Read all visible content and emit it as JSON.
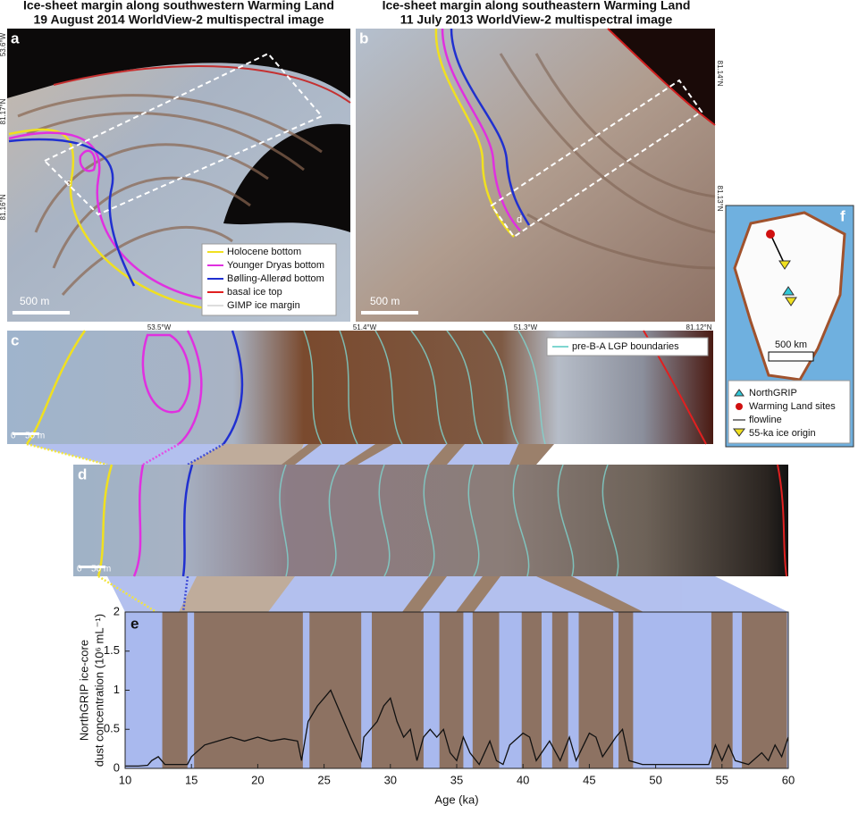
{
  "panels": {
    "a": {
      "label": "a",
      "title": [
        "Ice-sheet margin along southwestern Warming Land",
        "19 August 2014 WorldView-2 multispectral image"
      ],
      "lat_labels": [
        "81.17°N",
        "81.16°N"
      ],
      "lon_labels": [
        "53.6°W",
        "53.5°W"
      ],
      "scale_bar": "500 m",
      "inset": "c",
      "legend": [
        "Holocene bottom",
        "Younger Dryas bottom",
        "Bølling-Allerød bottom",
        "basal ice top",
        "GIMP ice margin"
      ]
    },
    "b": {
      "label": "b",
      "title": [
        "Ice-sheet margin along southeastern Warming Land",
        "11 July 2013 WorldView-2 multispectral image"
      ],
      "lat_labels": [
        "81.14°N",
        "81.13°N",
        "81.12°N"
      ],
      "lon_labels": [
        "51.4°W",
        "51.3°W"
      ],
      "scale_bar": "500 m",
      "inset": "d"
    },
    "c": {
      "label": "c",
      "legend": "pre-B-A LGP boundaries",
      "scale_bar": [
        "0",
        "50 m"
      ]
    },
    "d": {
      "label": "d",
      "scale_bar": [
        "0",
        "50 m"
      ]
    },
    "f": {
      "label": "f",
      "scale_bar": "500 km",
      "legend": [
        "NorthGRIP",
        "Warming Land sites",
        "flowline",
        "55-ka ice origin"
      ]
    }
  },
  "chart_data": {
    "type": "line",
    "panel_label": "e",
    "xlabel": "Age (ka)",
    "ylabel": [
      "NorthGRIP ice-core",
      "dust concentration (10⁶ mL⁻¹)"
    ],
    "x": [
      10,
      11,
      11.7,
      12,
      12.5,
      13,
      14,
      14.7,
      15,
      16,
      17,
      18,
      19,
      20,
      21,
      22,
      23,
      23.3,
      23.8,
      24.5,
      25,
      25.5,
      26,
      27,
      27.8,
      28,
      29,
      29.5,
      30,
      30.5,
      31,
      31.5,
      32,
      32.5,
      33,
      33.5,
      34,
      34.5,
      35,
      35.5,
      36,
      36.7,
      37.5,
      38,
      38.5,
      39,
      40,
      40.5,
      41,
      42,
      42.8,
      43.5,
      44,
      45,
      45.5,
      46,
      47,
      47.5,
      48,
      49,
      50,
      51,
      52,
      53,
      54,
      54.5,
      55,
      55.5,
      56,
      57,
      58,
      58.5,
      59,
      59.5,
      60
    ],
    "values": [
      0.03,
      0.03,
      0.04,
      0.1,
      0.15,
      0.05,
      0.05,
      0.05,
      0.15,
      0.3,
      0.35,
      0.4,
      0.35,
      0.4,
      0.35,
      0.38,
      0.35,
      0.1,
      0.6,
      0.8,
      0.9,
      1.0,
      0.8,
      0.4,
      0.1,
      0.4,
      0.6,
      0.8,
      0.9,
      0.6,
      0.4,
      0.5,
      0.1,
      0.4,
      0.5,
      0.4,
      0.5,
      0.2,
      0.1,
      0.4,
      0.2,
      0.05,
      0.35,
      0.1,
      0.05,
      0.3,
      0.45,
      0.4,
      0.1,
      0.35,
      0.1,
      0.4,
      0.1,
      0.45,
      0.4,
      0.15,
      0.4,
      0.5,
      0.1,
      0.05,
      0.05,
      0.05,
      0.05,
      0.05,
      0.05,
      0.3,
      0.1,
      0.3,
      0.1,
      0.05,
      0.2,
      0.1,
      0.3,
      0.15,
      0.4
    ],
    "color": "#111111",
    "background_color": "#a9b9ee",
    "shade_color": "#8a6a52",
    "shaded_periods": [
      [
        12.8,
        14.7
      ],
      [
        15.2,
        23.4
      ],
      [
        23.9,
        27.8
      ],
      [
        28.6,
        32.5
      ],
      [
        33.7,
        35.5
      ],
      [
        36.2,
        38.2
      ],
      [
        39.9,
        41.4
      ],
      [
        42.2,
        43.4
      ],
      [
        44.2,
        46.8
      ],
      [
        47.2,
        48.3
      ],
      [
        54.2,
        55.8
      ],
      [
        56.5,
        59.9
      ]
    ],
    "xlim": [
      10,
      60
    ],
    "ylim": [
      0,
      2
    ],
    "xticks": [
      10,
      15,
      20,
      25,
      30,
      35,
      40,
      45,
      50,
      55,
      60
    ],
    "yticks": [
      0,
      0.5,
      1,
      1.5,
      2
    ]
  }
}
